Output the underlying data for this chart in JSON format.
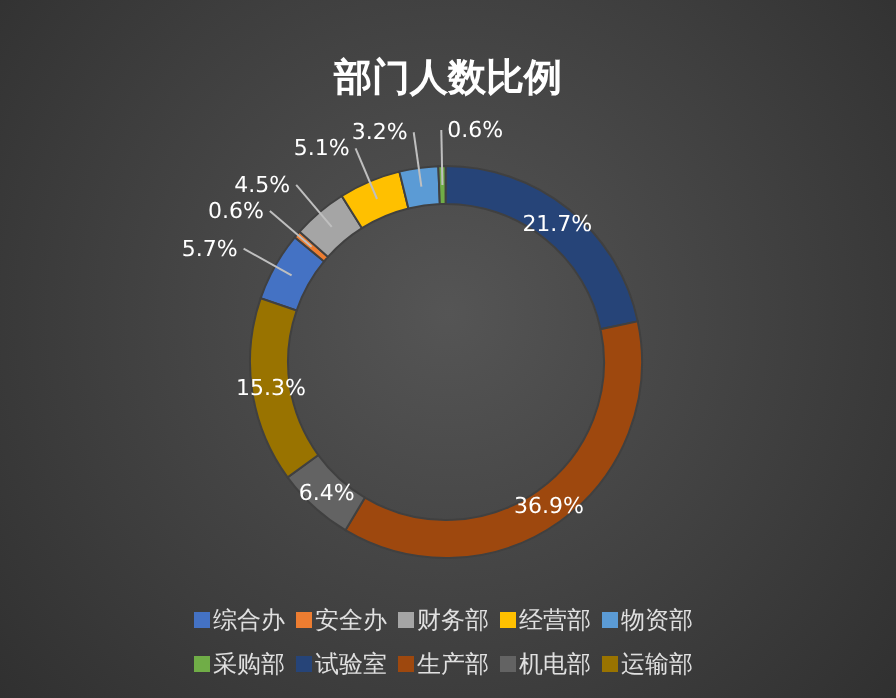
{
  "chart_data": {
    "type": "donut",
    "title": "部门人数比例",
    "categories": [
      "综合办",
      "安全办",
      "财务部",
      "经营部",
      "物资部",
      "采购部",
      "试验室",
      "生产部",
      "机电部",
      "运输部"
    ],
    "values": [
      5.7,
      0.6,
      4.5,
      5.1,
      3.2,
      0.6,
      21.7,
      36.9,
      6.4,
      15.3
    ],
    "colors": [
      "#4472c4",
      "#ed7d31",
      "#a5a5a5",
      "#ffc000",
      "#5b9bd5",
      "#70ad47",
      "#264478",
      "#9e480e",
      "#636363",
      "#997300"
    ],
    "value_labels": [
      "5.7%",
      "0.6%",
      "4.5%",
      "5.1%",
      "3.2%",
      "0.6%",
      "21.7%",
      "36.9%",
      "6.4%",
      "15.3%"
    ],
    "legend": "bottom"
  }
}
